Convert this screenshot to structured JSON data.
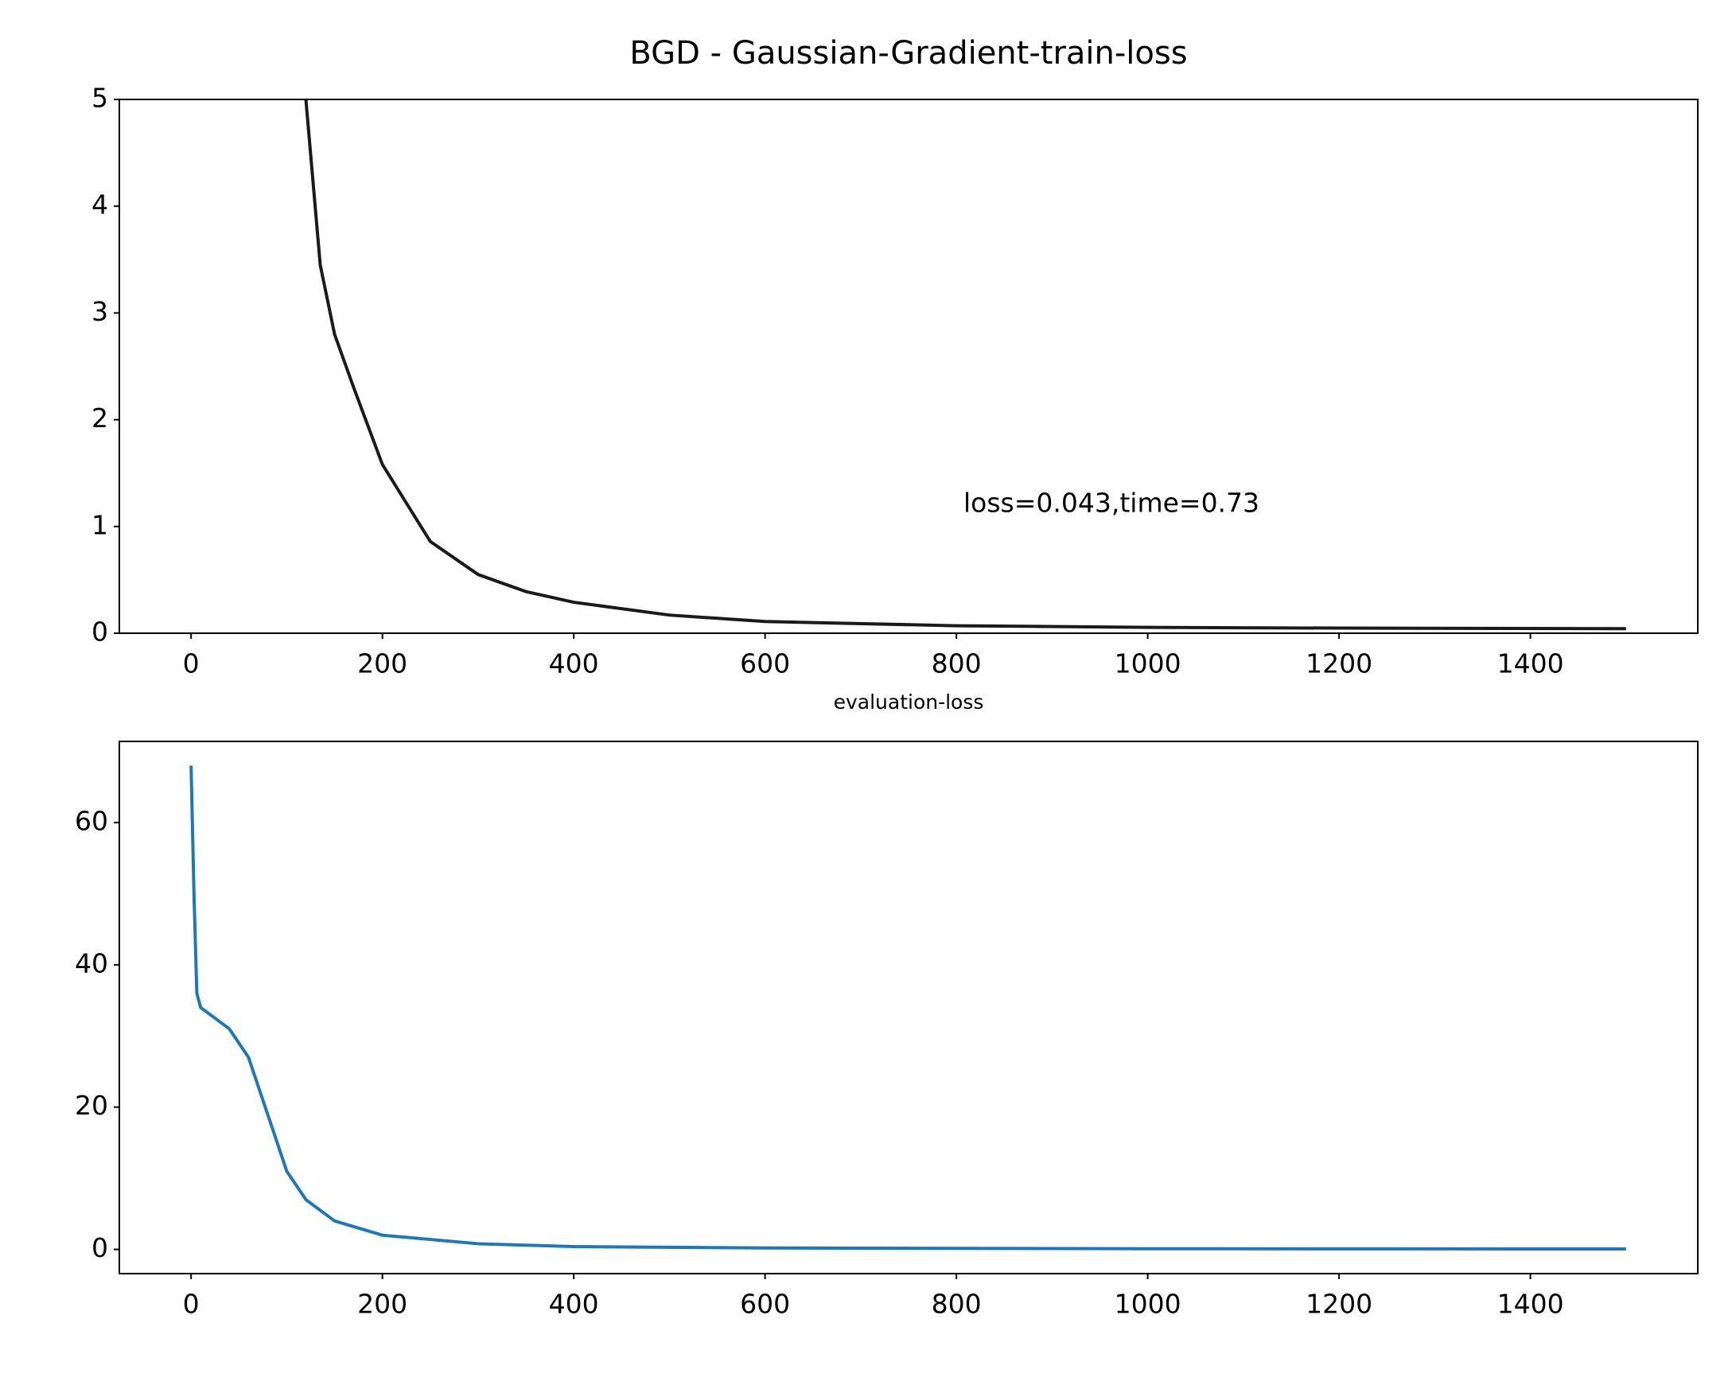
{
  "chart_data": [
    {
      "type": "line",
      "title": "BGD - Gaussian-Gradient-train-loss",
      "annotation": "loss=0.043,time=0.73",
      "series": [
        {
          "color": "#1a1a1a",
          "x": [
            100,
            120,
            135,
            150,
            170,
            200,
            250,
            300,
            350,
            400,
            500,
            600,
            800,
            1000,
            1200,
            1500
          ],
          "values": [
            8,
            5,
            3.45,
            2.8,
            2.3,
            1.58,
            0.86,
            0.55,
            0.39,
            0.29,
            0.17,
            0.11,
            0.07,
            0.055,
            0.048,
            0.043
          ]
        }
      ],
      "xlim": [
        -75,
        1575
      ],
      "ylim": [
        0,
        5
      ],
      "xticks": [
        0,
        200,
        400,
        600,
        800,
        1000,
        1200,
        1400
      ],
      "yticks": [
        0,
        1,
        2,
        3,
        4,
        5
      ]
    },
    {
      "type": "line",
      "title": "evaluation-loss",
      "series": [
        {
          "color": "#1f77b4",
          "x": [
            0,
            3,
            6,
            10,
            20,
            40,
            60,
            80,
            100,
            120,
            150,
            200,
            300,
            400,
            600,
            1000,
            1500
          ],
          "values": [
            68,
            50,
            36,
            34,
            33,
            31,
            27,
            19,
            11,
            7,
            4,
            2,
            0.8,
            0.4,
            0.2,
            0.1,
            0.06
          ]
        }
      ],
      "xlim": [
        -75,
        1575
      ],
      "ylim": [
        -3.4,
        71.4
      ],
      "xticks": [
        0,
        200,
        400,
        600,
        800,
        1000,
        1200,
        1400
      ],
      "yticks": [
        0,
        20,
        40,
        60
      ]
    }
  ]
}
